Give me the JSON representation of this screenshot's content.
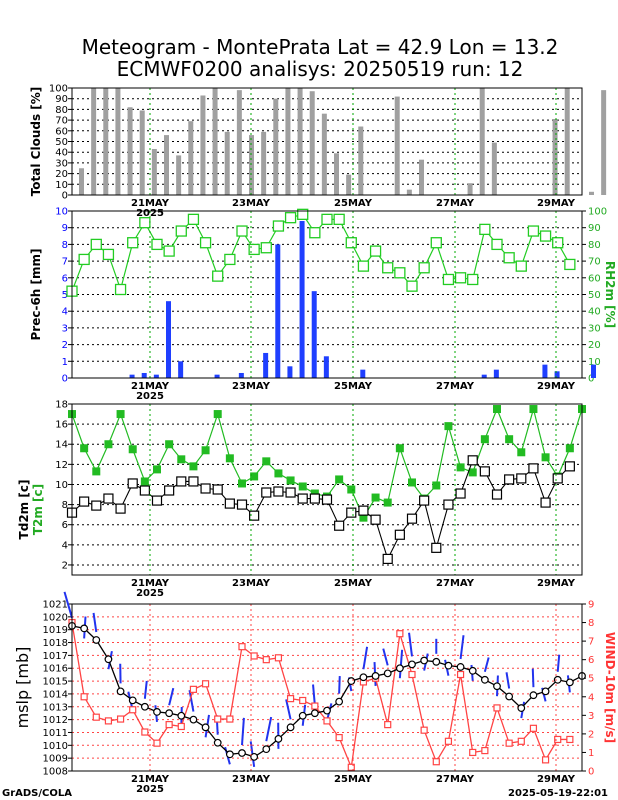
{
  "title_line1": "Meteogram - MontePrata Lat = 42.9 Lon = 13.2",
  "title_line2": "ECMWF0200 analisys: 20250519 run: 12",
  "footer_left": "GrADS/COLA",
  "footer_right": "2025-05-19-22:01",
  "year_label": "2025",
  "date_ticks": [
    "21MAY",
    "23MAY",
    "25MAY",
    "27MAY",
    "29MAY"
  ],
  "colors": {
    "clouds": "#a0a0a0",
    "precip": "#1f3fff",
    "rh": "#22cc22",
    "t2m": "#22bb22",
    "td2m": "#000000",
    "mslp": "#000000",
    "wind": "#ff4444",
    "barbs": "#2233ee",
    "grid_green": "#00aa00",
    "grid_red": "#ff4444"
  },
  "chart_data": [
    {
      "type": "bar",
      "ylabel": "Total Clouds [%]",
      "ylim": [
        0,
        100
      ],
      "yticks": [
        0,
        10,
        20,
        30,
        40,
        50,
        60,
        70,
        80,
        90,
        100
      ],
      "x_step_hours": 6,
      "values": [
        25,
        100,
        100,
        100,
        82,
        79,
        43,
        56,
        37,
        69,
        93,
        100,
        59,
        98,
        56,
        59,
        90,
        100,
        100,
        97,
        76,
        39,
        19,
        64,
        0,
        0,
        92,
        5,
        33,
        0,
        0,
        0,
        11,
        100,
        49,
        0,
        0,
        0,
        0,
        71,
        100,
        0,
        3,
        98
      ]
    },
    {
      "type": "bar+line",
      "ylabel": "Prec-6h [mm]",
      "y2label": "RH2m [%]",
      "ylim": [
        0,
        10
      ],
      "y2lim": [
        0,
        100
      ],
      "yticks": [
        0,
        1,
        2,
        3,
        4,
        5,
        6,
        7,
        8,
        9,
        10
      ],
      "y2ticks": [
        0,
        10,
        20,
        30,
        40,
        50,
        60,
        70,
        80,
        90,
        100
      ],
      "precip": [
        0,
        0,
        0,
        0,
        0.2,
        0.3,
        0.2,
        4.6,
        1.0,
        0,
        0,
        0.2,
        0,
        0.3,
        0,
        1.5,
        8.0,
        0.7,
        9.4,
        5.2,
        1.3,
        0,
        0,
        0.5,
        0,
        0,
        0,
        0,
        0,
        0,
        0,
        0,
        0,
        0.2,
        0.5,
        0,
        0,
        0,
        0.8,
        0.4,
        0,
        0,
        0.8
      ],
      "rh": [
        52,
        71,
        80,
        74,
        53,
        81,
        93,
        80,
        76,
        88,
        95,
        81,
        61,
        71,
        88,
        77,
        78,
        91,
        96,
        98,
        87,
        95,
        95,
        81,
        67,
        76,
        66,
        63,
        55,
        66,
        81,
        59,
        60,
        59,
        89,
        80,
        72,
        67,
        88,
        85,
        81,
        68
      ]
    },
    {
      "type": "line",
      "ylabel": "Td2m [c]",
      "ylabel2": "T2m [c]",
      "ylim": [
        1,
        18
      ],
      "yticks": [
        2,
        4,
        6,
        8,
        10,
        12,
        14,
        16,
        18
      ],
      "t2m": [
        17,
        13.6,
        11.3,
        14,
        17,
        13.5,
        10.3,
        11.5,
        14,
        12.5,
        11.8,
        13.4,
        17,
        12.6,
        10.1,
        10.8,
        12.3,
        11.1,
        10.4,
        9.8,
        9.1,
        8.8,
        10.5,
        9.5,
        6.7,
        8.7,
        8.2,
        13.6,
        10.2,
        8.6,
        9.9,
        15.8,
        11.7,
        11.2,
        14.5,
        17.5,
        14.5,
        13.2,
        17.5,
        12.7,
        10.8,
        13.6,
        17.5
      ],
      "td2m": [
        7.2,
        8.3,
        7.9,
        8.6,
        7.6,
        10.1,
        9.4,
        8.4,
        9.4,
        10.3,
        10.3,
        9.6,
        9.5,
        8.1,
        8.0,
        6.9,
        9.2,
        9.3,
        9.2,
        8.6,
        8.6,
        8.5,
        5.9,
        7.2,
        7.4,
        6.5,
        2.6,
        5.0,
        6.6,
        8.4,
        3.7,
        8.0,
        9.1,
        12.4,
        11.3,
        9.0,
        10.5,
        10.6,
        11.6,
        8.2,
        10.6,
        11.8
      ]
    },
    {
      "type": "line",
      "ylabel": "mslp [mb]",
      "y2label": "WIND-10m [m/s]",
      "ylim": [
        1008,
        1021
      ],
      "y2lim": [
        0,
        9
      ],
      "yticks": [
        1008,
        1009,
        1010,
        1011,
        1012,
        1013,
        1014,
        1015,
        1016,
        1017,
        1018,
        1019,
        1020,
        1021
      ],
      "y2ticks": [
        0,
        1,
        2,
        3,
        4,
        5,
        6,
        7,
        8,
        9
      ],
      "mslp": [
        1019.3,
        1019.1,
        1018.2,
        1016.7,
        1014.2,
        1013.5,
        1013.0,
        1012.6,
        1012.5,
        1012.3,
        1012.0,
        1011.4,
        1010.2,
        1009.3,
        1009.4,
        1009.1,
        1009.7,
        1010.5,
        1011.4,
        1012.3,
        1012.5,
        1012.7,
        1013.4,
        1015.0,
        1015.3,
        1015.4,
        1015.6,
        1016.0,
        1016.3,
        1016.6,
        1016.5,
        1016.2,
        1016.1,
        1015.8,
        1015.1,
        1014.6,
        1013.8,
        1012.9,
        1013.9,
        1014.2,
        1015.1,
        1014.9,
        1015.4
      ],
      "wind": [
        8.0,
        4.0,
        2.9,
        2.7,
        2.8,
        3.3,
        2.1,
        1.5,
        2.5,
        2.4,
        4.4,
        4.7,
        2.8,
        2.8,
        6.7,
        6.2,
        6.0,
        6.1,
        3.9,
        3.8,
        3.5,
        2.7,
        1.8,
        0.2,
        4.8,
        5.0,
        2.5,
        7.4,
        5.2,
        2.2,
        0.5,
        1.6,
        5.2,
        1.0,
        1.1,
        3.4,
        1.5,
        1.6,
        2.3,
        0.6,
        1.7,
        1.7
      ]
    }
  ]
}
